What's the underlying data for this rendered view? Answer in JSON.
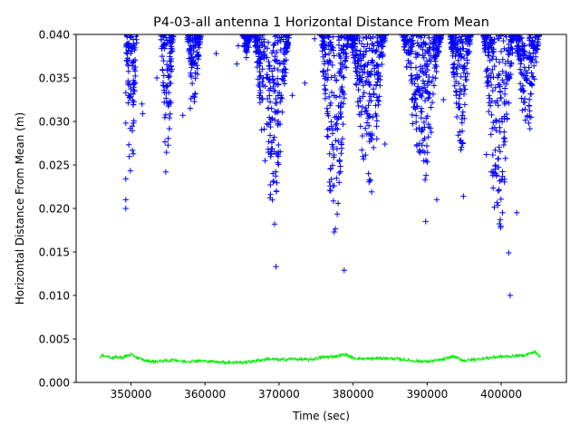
{
  "chart_data": {
    "type": "scatter",
    "title": "P4-03-all antenna 1 Horizontal Distance From Mean",
    "xlabel": "Time (sec)",
    "ylabel": "Horizontal Distance From Mean (m)",
    "xlim": [
      342600,
      408800
    ],
    "ylim": [
      0.0,
      0.04
    ],
    "x_ticks": [
      350000,
      360000,
      370000,
      380000,
      390000,
      400000
    ],
    "x_tick_labels": [
      "350000",
      "360000",
      "370000",
      "380000",
      "390000",
      "400000"
    ],
    "y_ticks": [
      0.0,
      0.005,
      0.01,
      0.015,
      0.02,
      0.025,
      0.03,
      0.035,
      0.04
    ],
    "y_tick_labels": [
      "0.000",
      "0.005",
      "0.010",
      "0.015",
      "0.020",
      "0.025",
      "0.030",
      "0.035",
      "0.040"
    ],
    "grid": false,
    "series": [
      {
        "color": "#0000ff",
        "marker": "+",
        "clusters": [
          {
            "x_start": 349200,
            "x_end": 350900,
            "y_min": 0.0225,
            "y_max": 0.04
          },
          {
            "x_start": 354000,
            "x_end": 355800,
            "y_min": 0.024,
            "y_max": 0.04
          },
          {
            "x_start": 357500,
            "x_end": 359500,
            "y_min": 0.032,
            "y_max": 0.04
          },
          {
            "x_start": 365000,
            "x_end": 366200,
            "y_min": 0.037,
            "y_max": 0.04
          },
          {
            "x_start": 366500,
            "x_end": 371500,
            "y_min": 0.019,
            "y_max": 0.04
          },
          {
            "x_start": 375500,
            "x_end": 379500,
            "y_min": 0.017,
            "y_max": 0.04
          },
          {
            "x_start": 379500,
            "x_end": 384500,
            "y_min": 0.022,
            "y_max": 0.04
          },
          {
            "x_start": 386500,
            "x_end": 392000,
            "y_min": 0.022,
            "y_max": 0.04
          },
          {
            "x_start": 393000,
            "x_end": 396000,
            "y_min": 0.026,
            "y_max": 0.04
          },
          {
            "x_start": 397500,
            "x_end": 401800,
            "y_min": 0.015,
            "y_max": 0.04
          },
          {
            "x_start": 401800,
            "x_end": 405200,
            "y_min": 0.028,
            "y_max": 0.04
          }
        ],
        "outliers": [
          {
            "x": 349300,
            "y": 0.0234
          },
          {
            "x": 349300,
            "y": 0.02
          },
          {
            "x": 349300,
            "y": 0.021
          },
          {
            "x": 349300,
            "y": 0.0298
          },
          {
            "x": 349300,
            "y": 0.0333
          },
          {
            "x": 351500,
            "y": 0.032
          },
          {
            "x": 351600,
            "y": 0.0309
          },
          {
            "x": 353500,
            "y": 0.035
          },
          {
            "x": 354700,
            "y": 0.0242
          },
          {
            "x": 357000,
            "y": 0.0307
          },
          {
            "x": 358000,
            "y": 0.0315
          },
          {
            "x": 358100,
            "y": 0.0326
          },
          {
            "x": 361500,
            "y": 0.0378
          },
          {
            "x": 364300,
            "y": 0.0366
          },
          {
            "x": 364500,
            "y": 0.0387
          },
          {
            "x": 369600,
            "y": 0.0133
          },
          {
            "x": 369400,
            "y": 0.0182
          },
          {
            "x": 371800,
            "y": 0.033
          },
          {
            "x": 373500,
            "y": 0.0344
          },
          {
            "x": 374800,
            "y": 0.0395
          },
          {
            "x": 378800,
            "y": 0.0129
          },
          {
            "x": 382500,
            "y": 0.0219
          },
          {
            "x": 383200,
            "y": 0.028
          },
          {
            "x": 384300,
            "y": 0.0274
          },
          {
            "x": 389800,
            "y": 0.0185
          },
          {
            "x": 391300,
            "y": 0.021
          },
          {
            "x": 392200,
            "y": 0.0325
          },
          {
            "x": 394900,
            "y": 0.0214
          },
          {
            "x": 398000,
            "y": 0.0262
          },
          {
            "x": 399600,
            "y": 0.022
          },
          {
            "x": 401200,
            "y": 0.01
          },
          {
            "x": 401000,
            "y": 0.0149
          },
          {
            "x": 402100,
            "y": 0.0195
          }
        ]
      },
      {
        "color": "#00ee00",
        "marker": "line",
        "points": [
          [
            345800,
            0.0029
          ],
          [
            346300,
            0.0031
          ],
          [
            347500,
            0.00285
          ],
          [
            349000,
            0.0029
          ],
          [
            350000,
            0.0032
          ],
          [
            351000,
            0.0028
          ],
          [
            352000,
            0.0025
          ],
          [
            353000,
            0.0024
          ],
          [
            355000,
            0.0025
          ],
          [
            356000,
            0.0026
          ],
          [
            357000,
            0.0024
          ],
          [
            359000,
            0.0025
          ],
          [
            361000,
            0.0024
          ],
          [
            363000,
            0.0023
          ],
          [
            365000,
            0.0023
          ],
          [
            367000,
            0.0025
          ],
          [
            368500,
            0.0027
          ],
          [
            370000,
            0.0026
          ],
          [
            372000,
            0.0027
          ],
          [
            374000,
            0.0026
          ],
          [
            376000,
            0.0029
          ],
          [
            377500,
            0.003
          ],
          [
            379000,
            0.0032
          ],
          [
            380000,
            0.0028
          ],
          [
            382000,
            0.0027
          ],
          [
            384000,
            0.0028
          ],
          [
            386000,
            0.0027
          ],
          [
            388000,
            0.0025
          ],
          [
            390000,
            0.0024
          ],
          [
            392000,
            0.0026
          ],
          [
            393500,
            0.003
          ],
          [
            395000,
            0.0025
          ],
          [
            397000,
            0.0027
          ],
          [
            399000,
            0.0029
          ],
          [
            401000,
            0.003
          ],
          [
            403000,
            0.0031
          ],
          [
            404500,
            0.0035
          ],
          [
            405300,
            0.003
          ]
        ]
      }
    ]
  }
}
